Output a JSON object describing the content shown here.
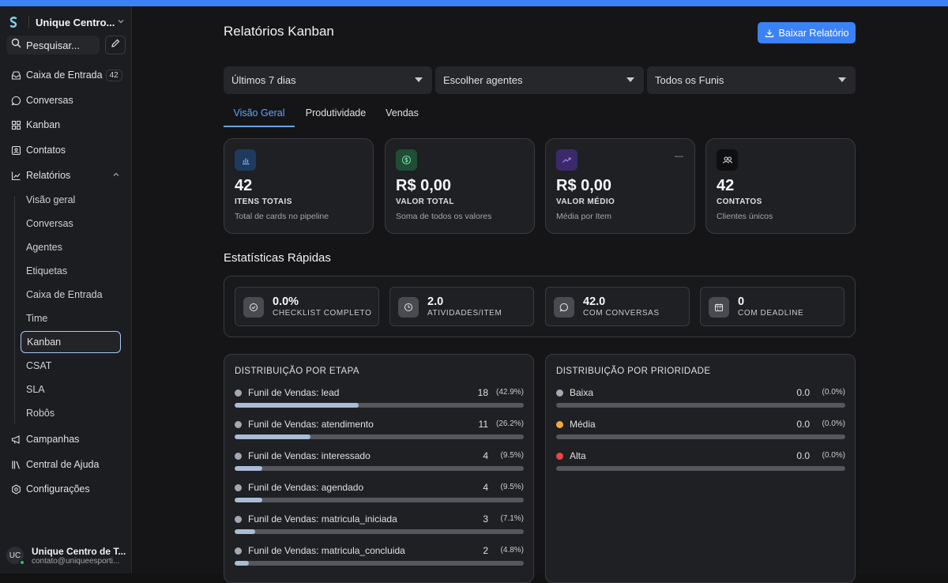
{
  "sidebar": {
    "workspace_name": "Unique Centro...",
    "search_placeholder": "Pesquisar...",
    "nav": [
      {
        "label": "Caixa de Entrada",
        "badge": "42",
        "icon": "inbox-icon"
      },
      {
        "label": "Conversas",
        "icon": "chat-icon"
      },
      {
        "label": "Kanban",
        "icon": "grid-icon"
      },
      {
        "label": "Contatos",
        "icon": "contact-icon"
      },
      {
        "label": "Relatórios",
        "icon": "chart-line-icon"
      }
    ],
    "reports_sub": [
      "Visão geral",
      "Conversas",
      "Agentes",
      "Etiquetas",
      "Caixa de Entrada",
      "Time",
      "Kanban",
      "CSAT",
      "SLA",
      "Robôs"
    ],
    "active_sub": "Kanban",
    "nav_bottom": [
      {
        "label": "Campanhas",
        "icon": "megaphone-icon"
      },
      {
        "label": "Central de Ajuda",
        "icon": "library-icon"
      },
      {
        "label": "Configurações",
        "icon": "settings-icon"
      }
    ],
    "user": {
      "initials": "UC",
      "name": "Unique Centro de T...",
      "email": "contato@uniqueesporti..."
    }
  },
  "header": {
    "title": "Relatórios Kanban",
    "download_label": "Baixar Relatório"
  },
  "filters": [
    "Últimos 7 dias",
    "Escolher agentes",
    "Todos os Funis"
  ],
  "tabs": [
    "Visão Geral",
    "Produtividade",
    "Vendas"
  ],
  "active_tab": "Visão Geral",
  "cards": [
    {
      "value": "42",
      "label": "ITENS TOTAIS",
      "desc": "Total de cards no pipeline",
      "icon": "bar-chart-icon",
      "color": "#1e3a5f"
    },
    {
      "value": "R$ 0,00",
      "label": "VALOR TOTAL",
      "desc": "Soma de todos os valores",
      "icon": "dollar-icon",
      "color": "#1f4d35"
    },
    {
      "value": "R$ 0,00",
      "label": "VALOR MÉDIO",
      "desc": "Média por Item",
      "icon": "trending-up-icon",
      "color": "#3a2a6b",
      "extra": "—"
    },
    {
      "value": "42",
      "label": "CONTATOS",
      "desc": "Clientes únicos",
      "icon": "users-icon",
      "color": "#0f0f11"
    }
  ],
  "quick_stats_title": "Estatísticas Rápidas",
  "quick_stats": [
    {
      "value": "0.0%",
      "label": "CHECKLIST COMPLETO",
      "icon": "check-circle-icon"
    },
    {
      "value": "2.0",
      "label": "ATIVIDADES/ITEM",
      "icon": "clock-icon"
    },
    {
      "value": "42.0",
      "label": "COM CONVERSAS",
      "icon": "message-icon"
    },
    {
      "value": "0",
      "label": "COM DEADLINE",
      "icon": "calendar-icon"
    }
  ],
  "stage_distribution": {
    "title": "DISTRIBUIÇÃO POR ETAPA",
    "rows": [
      {
        "name": "Funil de Vendas: lead",
        "count": "18",
        "pct": "(42.9%)",
        "fraction": 0.429
      },
      {
        "name": "Funil de Vendas: atendimento",
        "count": "11",
        "pct": "(26.2%)",
        "fraction": 0.262
      },
      {
        "name": "Funil de Vendas: interessado",
        "count": "4",
        "pct": "(9.5%)",
        "fraction": 0.095
      },
      {
        "name": "Funil de Vendas: agendado",
        "count": "4",
        "pct": "(9.5%)",
        "fraction": 0.095
      },
      {
        "name": "Funil de Vendas: matricula_iniciada",
        "count": "3",
        "pct": "(7.1%)",
        "fraction": 0.071
      },
      {
        "name": "Funil de Vendas: matricula_concluida",
        "count": "2",
        "pct": "(4.8%)",
        "fraction": 0.048
      }
    ]
  },
  "priority_distribution": {
    "title": "DISTRIBUIÇÃO POR PRIORIDADE",
    "rows": [
      {
        "name": "Baixa",
        "count": "0.0",
        "pct": "(0.0%)",
        "fraction": 0,
        "color": "#a3a9b4"
      },
      {
        "name": "Média",
        "count": "0.0",
        "pct": "(0.0%)",
        "fraction": 0,
        "color": "#f0a93a"
      },
      {
        "name": "Alta",
        "count": "0.0",
        "pct": "(0.0%)",
        "fraction": 0,
        "color": "#ef4444"
      }
    ]
  },
  "colors": {
    "accent": "#3b82f6",
    "tab_active": "#60a5fa",
    "stage_dot": "#a3a9b4",
    "bar_fill": "#a9bdd6"
  }
}
